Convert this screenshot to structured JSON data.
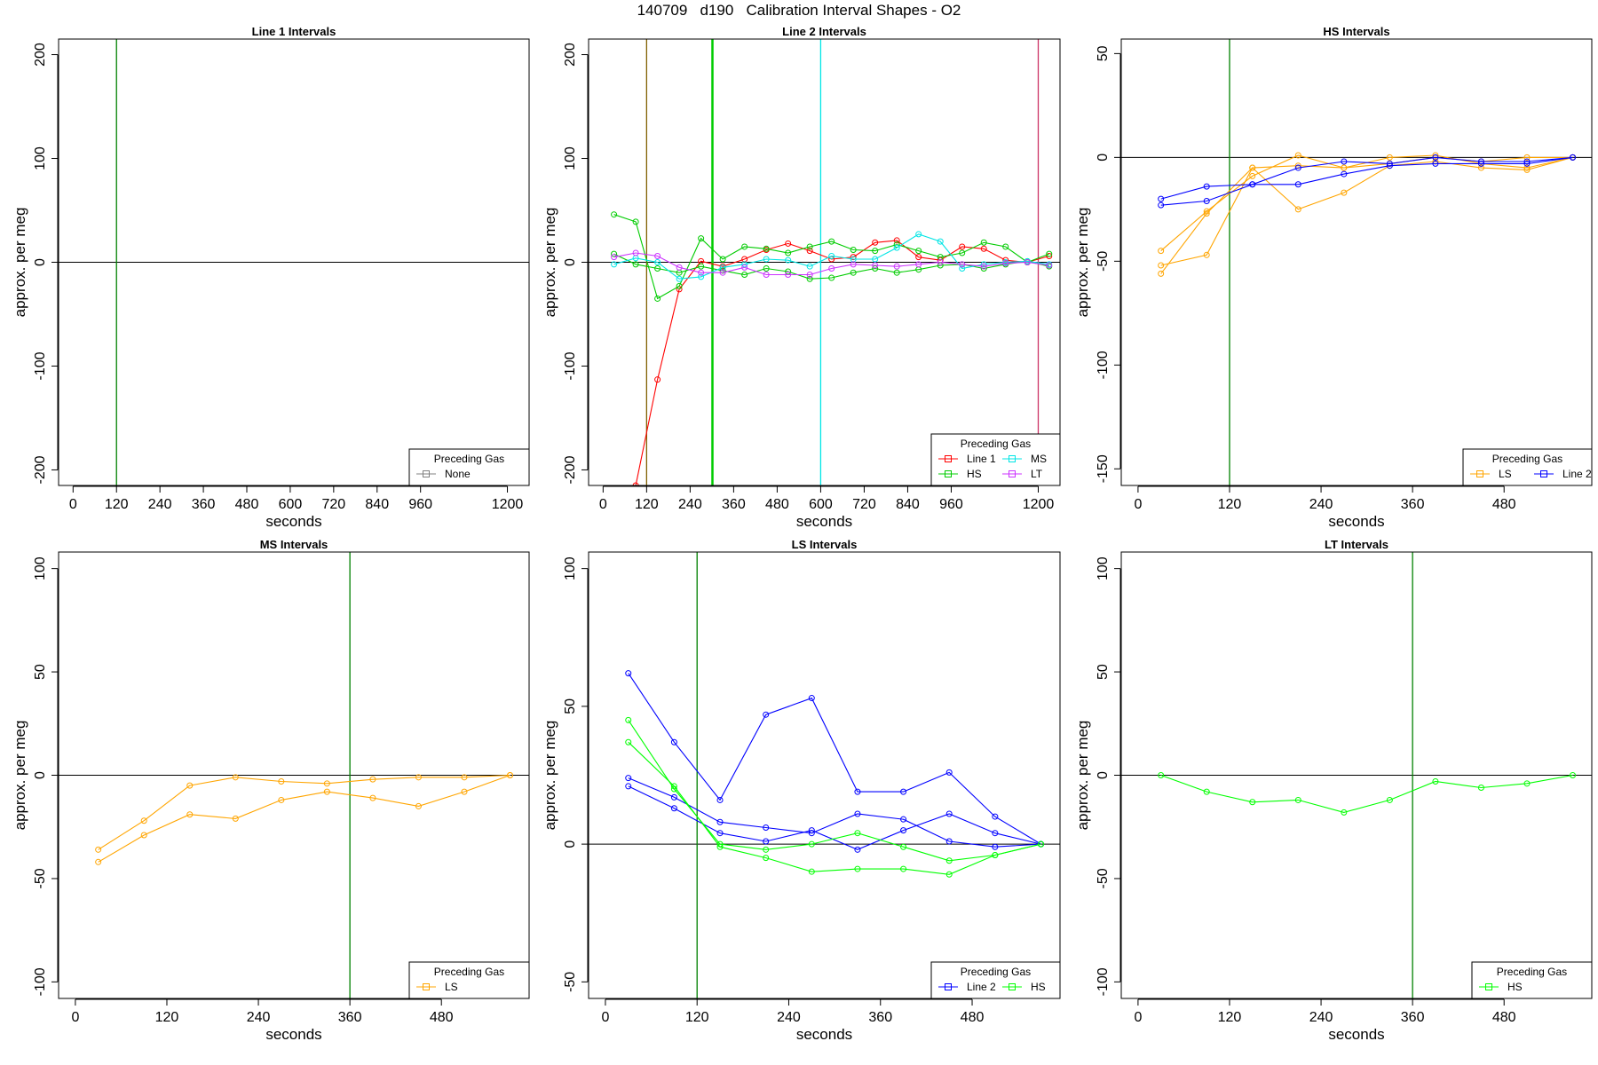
{
  "figure": {
    "title": "140709   d190   Calibration Interval Shapes - O2"
  },
  "chart_data": [
    {
      "type": "line",
      "title": "Line 1 Intervals",
      "xlabel": "seconds",
      "ylabel": "approx. per meg",
      "xlim": [
        -40,
        1260
      ],
      "ylim": [
        -215,
        215
      ],
      "xticks": [
        0,
        120,
        240,
        360,
        480,
        600,
        720,
        840,
        960,
        1200
      ],
      "yticks": [
        -200,
        -100,
        0,
        100,
        200
      ],
      "hline": 0,
      "vlines": [
        {
          "x": 120,
          "color": "#008000"
        }
      ],
      "legend": {
        "title": "Preceding Gas",
        "position": "bottom-right",
        "entries": [
          {
            "label": "None",
            "color": "#808080"
          }
        ]
      },
      "series": []
    },
    {
      "type": "line",
      "title": "Line 2 Intervals",
      "xlabel": "seconds",
      "ylabel": "approx. per meg",
      "xlim": [
        -40,
        1260
      ],
      "ylim": [
        -215,
        215
      ],
      "xticks": [
        0,
        120,
        240,
        360,
        480,
        600,
        720,
        840,
        960,
        1200
      ],
      "yticks": [
        -200,
        -100,
        0,
        100,
        200
      ],
      "hline": 0,
      "vlines": [
        {
          "x": 120,
          "color": "#806000"
        },
        {
          "x": 300,
          "color": "#00CC00"
        },
        {
          "x": 303,
          "color": "#00CC00"
        },
        {
          "x": 600,
          "color": "#00E5E5"
        },
        {
          "x": 1200,
          "color": "#CC3366"
        }
      ],
      "legend": {
        "title": "Preceding Gas",
        "position": "bottom-right",
        "entries": [
          {
            "label": "Line 1",
            "color": "#FF0000"
          },
          {
            "label": "MS",
            "color": "#00E5E5"
          },
          {
            "label": "HS",
            "color": "#00CC00"
          },
          {
            "label": "LT",
            "color": "#CC33FF"
          }
        ]
      },
      "series": [
        {
          "name": "Line 1",
          "color": "#FF0000",
          "x": [
            90,
            150,
            210,
            270,
            330,
            390,
            450,
            510,
            570,
            630,
            690,
            750,
            810,
            870,
            930,
            990,
            1050,
            1110,
            1170,
            1230
          ],
          "y": [
            -215,
            -113,
            -26,
            1,
            -4,
            3,
            12,
            18,
            11,
            3,
            5,
            19,
            21,
            5,
            2,
            15,
            13,
            2,
            0,
            6
          ]
        },
        {
          "name": "HS",
          "color": "#00CC00",
          "x": [
            30,
            90,
            150,
            210,
            270,
            330,
            390,
            450,
            510,
            570,
            630,
            690,
            750,
            810,
            870,
            930,
            990,
            1050,
            1110,
            1170,
            1230
          ],
          "y": [
            46,
            39,
            -35,
            -23,
            23,
            3,
            15,
            13,
            9,
            15,
            20,
            12,
            11,
            17,
            11,
            5,
            9,
            19,
            15,
            0,
            8
          ]
        },
        {
          "name": "HS",
          "color": "#00CC00",
          "x": [
            30,
            90,
            150,
            210,
            270,
            330,
            390,
            450,
            510,
            570,
            630,
            690,
            750,
            810,
            870,
            930,
            990,
            1050,
            1110,
            1170,
            1230
          ],
          "y": [
            8,
            -2,
            -6,
            -10,
            -4,
            -8,
            -12,
            -6,
            -9,
            -16,
            -15,
            -10,
            -6,
            -10,
            -7,
            -3,
            -2,
            -6,
            -2,
            1,
            -4
          ]
        },
        {
          "name": "MS",
          "color": "#00E5E5",
          "x": [
            30,
            90,
            150,
            210,
            270,
            330,
            390,
            450,
            510,
            570,
            630,
            690,
            750,
            810,
            870,
            930,
            990,
            1050,
            1110,
            1170,
            1230
          ],
          "y": [
            -2,
            4,
            0,
            -16,
            -14,
            -5,
            -2,
            3,
            2,
            -4,
            6,
            3,
            3,
            14,
            27,
            20,
            -6,
            -2,
            0,
            1,
            -2
          ]
        },
        {
          "name": "LT",
          "color": "#CC33FF",
          "x": [
            30,
            90,
            150,
            210,
            270,
            330,
            390,
            450,
            510,
            570,
            630,
            690,
            750,
            810,
            870,
            930,
            990,
            1050,
            1110,
            1170,
            1230
          ],
          "y": [
            5,
            9,
            6,
            -5,
            -10,
            -10,
            -5,
            -12,
            -12,
            -12,
            -6,
            -2,
            -3,
            -4,
            -2,
            0,
            -2,
            -4,
            -1,
            0,
            -3
          ]
        }
      ]
    },
    {
      "type": "line",
      "title": "HS Intervals",
      "xlabel": "seconds",
      "ylabel": "approx. per meg",
      "xlim": [
        -22,
        595
      ],
      "ylim": [
        -158,
        57
      ],
      "xticks": [
        0,
        120,
        240,
        360,
        480
      ],
      "yticks": [
        -150,
        -100,
        -50,
        0,
        50
      ],
      "hline": 0,
      "vlines": [
        {
          "x": 120,
          "color": "#008000"
        }
      ],
      "legend": {
        "title": "Preceding Gas",
        "position": "bottom-right",
        "entries": [
          {
            "label": "LS",
            "color": "#FFA500"
          },
          {
            "label": "Line 2",
            "color": "#0000FF"
          }
        ]
      },
      "series": [
        {
          "name": "LS",
          "color": "#FFA500",
          "x": [
            30,
            90,
            150,
            210,
            270,
            330,
            390,
            450,
            510,
            570
          ],
          "y": [
            -45,
            -26,
            -9,
            1,
            -5,
            0,
            1,
            -3,
            -5,
            0
          ]
        },
        {
          "name": "LS",
          "color": "#FFA500",
          "x": [
            30,
            90,
            150,
            210,
            270,
            330,
            390,
            450,
            510,
            570
          ],
          "y": [
            -52,
            -47,
            -5,
            -25,
            -17,
            -4,
            -2,
            -5,
            -6,
            0
          ]
        },
        {
          "name": "LS",
          "color": "#FFA500",
          "x": [
            30,
            90,
            150,
            210,
            270,
            330,
            390,
            450,
            510,
            570
          ],
          "y": [
            -56,
            -27,
            -5,
            -4,
            -5,
            -3,
            0,
            -2,
            0,
            0
          ]
        },
        {
          "name": "Line 2",
          "color": "#0000FF",
          "x": [
            30,
            90,
            150,
            210,
            270,
            330,
            390,
            450,
            510,
            570
          ],
          "y": [
            -20,
            -14,
            -13,
            -5,
            -2,
            -3,
            0,
            -2,
            -2,
            0
          ]
        },
        {
          "name": "Line 2",
          "color": "#0000FF",
          "x": [
            30,
            90,
            150,
            210,
            270,
            330,
            390,
            450,
            510,
            570
          ],
          "y": [
            -23,
            -21,
            -13,
            -13,
            -8,
            -4,
            -3,
            -3,
            -3,
            0
          ]
        }
      ]
    },
    {
      "type": "line",
      "title": "MS Intervals",
      "xlabel": "seconds",
      "ylabel": "approx. per meg",
      "xlim": [
        -22,
        595
      ],
      "ylim": [
        -108,
        108
      ],
      "xticks": [
        0,
        120,
        240,
        360,
        480
      ],
      "yticks": [
        -100,
        -50,
        0,
        50,
        100
      ],
      "hline": 0,
      "vlines": [
        {
          "x": 360,
          "color": "#008000"
        }
      ],
      "legend": {
        "title": "Preceding Gas",
        "position": "bottom-right",
        "entries": [
          {
            "label": "LS",
            "color": "#FFA500"
          }
        ]
      },
      "series": [
        {
          "name": "LS",
          "color": "#FFA500",
          "x": [
            30,
            90,
            150,
            210,
            270,
            330,
            390,
            450,
            510,
            570
          ],
          "y": [
            -36,
            -22,
            -5,
            -1,
            -3,
            -4,
            -2,
            -1,
            -1,
            0
          ]
        },
        {
          "name": "LS",
          "color": "#FFA500",
          "x": [
            30,
            90,
            150,
            210,
            270,
            330,
            390,
            450,
            510,
            570
          ],
          "y": [
            -42,
            -29,
            -19,
            -21,
            -12,
            -8,
            -11,
            -15,
            -8,
            0
          ]
        }
      ]
    },
    {
      "type": "line",
      "title": "LS Intervals",
      "xlabel": "seconds",
      "ylabel": "approx. per meg",
      "xlim": [
        -22,
        595
      ],
      "ylim": [
        -56,
        106
      ],
      "xticks": [
        0,
        120,
        240,
        360,
        480
      ],
      "yticks": [
        -50,
        0,
        50,
        100
      ],
      "hline": 0,
      "vlines": [
        {
          "x": 120,
          "color": "#008000"
        }
      ],
      "legend": {
        "title": "Preceding Gas",
        "position": "bottom-right",
        "entries": [
          {
            "label": "Line 2",
            "color": "#0000FF"
          },
          {
            "label": "HS",
            "color": "#00FF00"
          }
        ]
      },
      "series": [
        {
          "name": "Line 2",
          "color": "#0000FF",
          "x": [
            30,
            90,
            150,
            210,
            270,
            330,
            390,
            450,
            510,
            570
          ],
          "y": [
            62,
            37,
            16,
            47,
            53,
            19,
            19,
            26,
            10,
            0
          ]
        },
        {
          "name": "Line 2",
          "color": "#0000FF",
          "x": [
            30,
            90,
            150,
            210,
            270,
            330,
            390,
            450,
            510,
            570
          ],
          "y": [
            24,
            17,
            8,
            6,
            4,
            11,
            9,
            1,
            -1,
            0
          ]
        },
        {
          "name": "Line 2",
          "color": "#0000FF",
          "x": [
            30,
            90,
            150,
            210,
            270,
            330,
            390,
            450,
            510,
            570
          ],
          "y": [
            21,
            13,
            4,
            1,
            5,
            -2,
            5,
            11,
            4,
            0
          ]
        },
        {
          "name": "HS",
          "color": "#00FF00",
          "x": [
            30,
            90,
            150,
            210,
            270,
            330,
            390,
            450,
            510,
            570
          ],
          "y": [
            45,
            20,
            0,
            -2,
            0,
            4,
            -1,
            -6,
            -4,
            0
          ]
        },
        {
          "name": "HS",
          "color": "#00FF00",
          "x": [
            30,
            90,
            150,
            210,
            270,
            330,
            390,
            450,
            510,
            570
          ],
          "y": [
            37,
            21,
            -1,
            -5,
            -10,
            -9,
            -9,
            -11,
            -4,
            0
          ]
        }
      ]
    },
    {
      "type": "line",
      "title": "LT Intervals",
      "xlabel": "seconds",
      "ylabel": "approx. per meg",
      "xlim": [
        -22,
        595
      ],
      "ylim": [
        -108,
        108
      ],
      "xticks": [
        0,
        120,
        240,
        360,
        480
      ],
      "yticks": [
        -100,
        -50,
        0,
        50,
        100
      ],
      "hline": 0,
      "vlines": [
        {
          "x": 360,
          "color": "#008000"
        }
      ],
      "legend": {
        "title": "Preceding Gas",
        "position": "bottom-right",
        "entries": [
          {
            "label": "HS",
            "color": "#00FF00"
          }
        ]
      },
      "series": [
        {
          "name": "HS",
          "color": "#00FF00",
          "x": [
            30,
            90,
            150,
            210,
            270,
            330,
            390,
            450,
            510,
            570
          ],
          "y": [
            0,
            -8,
            -13,
            -12,
            -18,
            -12,
            -3,
            -6,
            -4,
            0
          ]
        }
      ]
    }
  ]
}
